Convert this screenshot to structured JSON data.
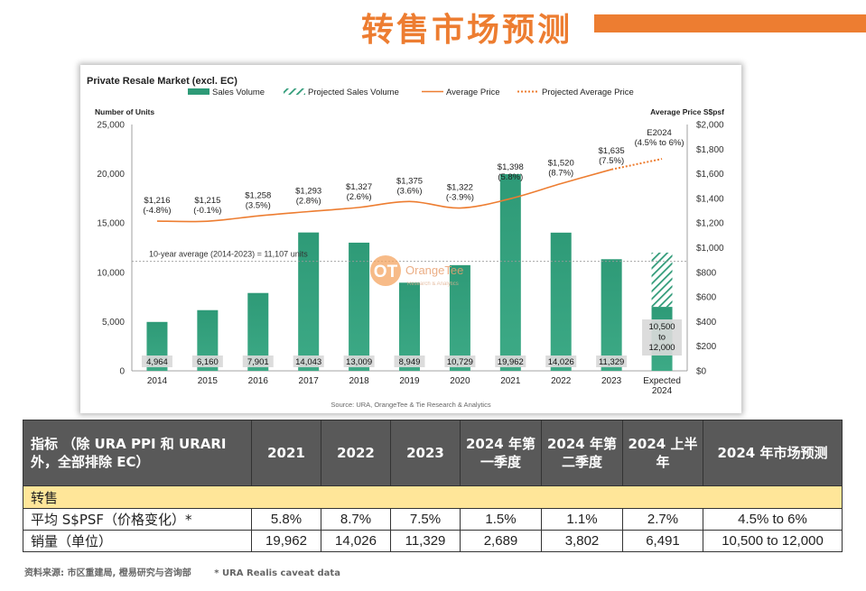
{
  "page": {
    "title": "转售市场预测"
  },
  "chart_data": {
    "type": "bar",
    "title": "Private Resale Market (excl. EC)",
    "legend": [
      "Sales Volume",
      "Projected Sales Volume",
      "Average Price",
      "Projected Average Price"
    ],
    "legend_position": "top",
    "y_left_label": "Number of Units",
    "y_right_label": "Average Price S$psf",
    "y_left_ticks": [
      "0",
      "5,000",
      "10,000",
      "15,000",
      "20,000",
      "25,000"
    ],
    "y_right_ticks": [
      "$0",
      "$200",
      "$400",
      "$600",
      "$800",
      "$1,000",
      "$1,200",
      "$1,400",
      "$1,600",
      "$1,800",
      "$2,000"
    ],
    "ylim_left": [
      0,
      25000
    ],
    "ylim_right": [
      0,
      2000
    ],
    "categories": [
      "2014",
      "2015",
      "2016",
      "2017",
      "2018",
      "2019",
      "2020",
      "2021",
      "2022",
      "2023",
      "Expected 2024"
    ],
    "category_lines": [
      [
        "2014"
      ],
      [
        "2015"
      ],
      [
        "2016"
      ],
      [
        "2017"
      ],
      [
        "2018"
      ],
      [
        "2019"
      ],
      [
        "2020"
      ],
      [
        "2021"
      ],
      [
        "2022"
      ],
      [
        "2023"
      ],
      [
        "Expected",
        "2024"
      ]
    ],
    "sales_volume": [
      4964,
      6160,
      7901,
      14043,
      13009,
      8949,
      10729,
      19962,
      14026,
      11329,
      6491
    ],
    "volume_labels": [
      "4,964",
      "6,160",
      "7,901",
      "14,043",
      "13,009",
      "8,949",
      "10,729",
      "19,962",
      "14,026",
      "11,329"
    ],
    "projected_volume": {
      "low": 10500,
      "high": 12000,
      "label_lines": [
        "10,500",
        "to",
        "12,000"
      ]
    },
    "average_price": [
      1216,
      1215,
      1258,
      1293,
      1327,
      1375,
      1322,
      1398,
      1520,
      1635
    ],
    "price_labels": [
      [
        "$1,216",
        "(-4.8%)"
      ],
      [
        "$1,215",
        "(-0.1%)"
      ],
      [
        "$1,258",
        "(3.5%)"
      ],
      [
        "$1,293",
        "(2.8%)"
      ],
      [
        "$1,327",
        "(2.6%)"
      ],
      [
        "$1,375",
        "(3.6%)"
      ],
      [
        "$1,322",
        "(-3.9%)"
      ],
      [
        "$1,398",
        "(5.8%)"
      ],
      [
        "$1,520",
        "(8.7%)"
      ],
      [
        "$1,635",
        "(7.5%)"
      ]
    ],
    "projected_average_price": {
      "from": 1635,
      "to_low": 1709,
      "to_high": 1733,
      "label_lines": [
        "E2024",
        "(4.5% to 6%)"
      ]
    },
    "reference_line": {
      "value": 11107,
      "label": "10-year average (2014-2023) = 11,107 units"
    },
    "watermark": {
      "mark": "OT",
      "name": "OrangeTee",
      "sub": "Research & Analytics"
    },
    "source": "Source: URA, OrangeTee & Tie Research & Analytics",
    "colors": {
      "bar": "#2E9A77",
      "bar_top": "#4DB08E",
      "price_line": "#ED7D31",
      "hatch": "#2E9A77",
      "label_bg": "#D9D9D9",
      "ref_line": "#999999"
    },
    "grid": false
  },
  "table": {
    "headers": [
      "指标 （除 URA PPI 和 URARI 外，全部排除 EC）",
      "2021",
      "2022",
      "2023",
      "2024 年第一季度",
      "2024 年第二季度",
      "2024 上半年",
      "2024 年市场预测"
    ],
    "section": "转售",
    "rows": [
      [
        "平均 S$PSF（价格变化）*",
        "5.8%",
        "8.7%",
        "7.5%",
        "1.5%",
        "1.1%",
        "2.7%",
        "4.5% to 6%"
      ],
      [
        "销量（单位）",
        "19,962",
        "14,026",
        "11,329",
        "2,689",
        "3,802",
        "6,491",
        "10,500 to 12,000"
      ]
    ]
  },
  "footer": {
    "source": "资料来源: 市区重建局, 橙易研究与咨询部",
    "note": "* URA Realis caveat data"
  }
}
